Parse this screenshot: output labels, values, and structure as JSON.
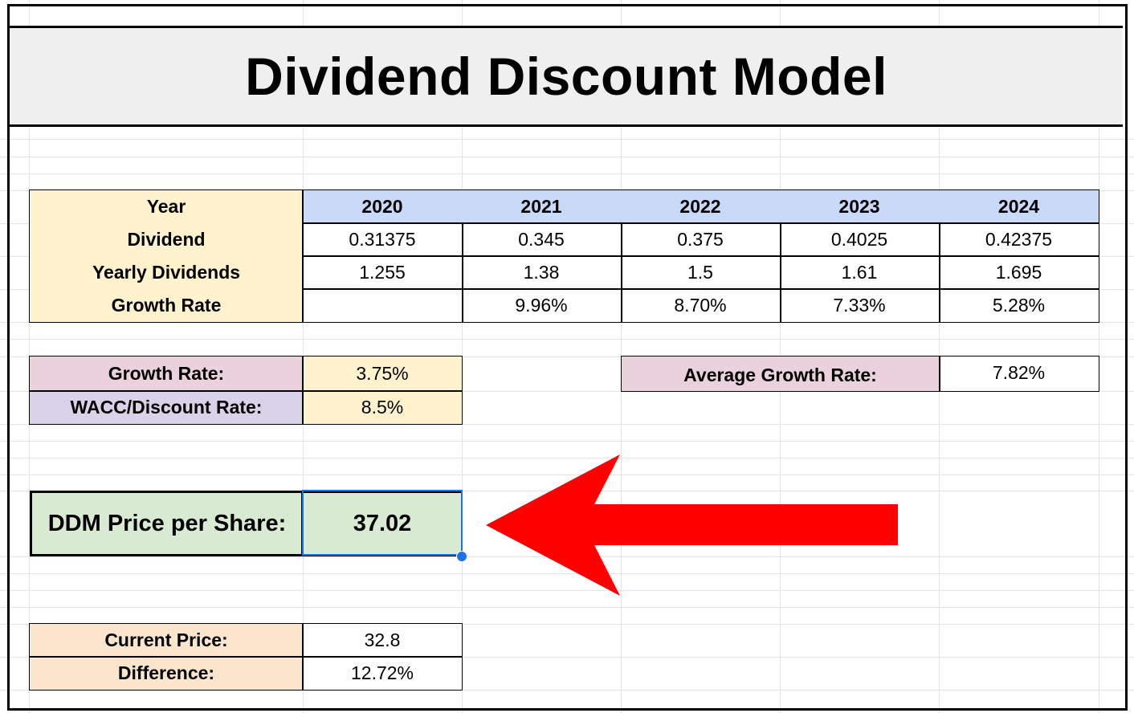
{
  "title": "Dividend Discount Model",
  "colors": {
    "header_yellow": "#fff2cc",
    "year_blue": "#c9daf8",
    "pink": "#ead1dc",
    "lavender": "#d9d2e9",
    "orange": "#fce5cd",
    "green": "#d9ead3",
    "arrow_red": "#ff0000",
    "selection_blue": "#1a73e8"
  },
  "table": {
    "row_labels": [
      "Year",
      "Dividend",
      "Yearly Dividends",
      "Growth Rate"
    ],
    "years": [
      "2020",
      "2021",
      "2022",
      "2023",
      "2024"
    ],
    "dividend": [
      "0.31375",
      "0.345",
      "0.375",
      "0.4025",
      "0.42375"
    ],
    "yearly_dividends": [
      "1.255",
      "1.38",
      "1.5",
      "1.61",
      "1.695"
    ],
    "growth_rate": [
      "",
      "9.96%",
      "8.70%",
      "7.33%",
      "5.28%"
    ]
  },
  "inputs": {
    "growth_rate_label": "Growth Rate:",
    "growth_rate_value": "3.75%",
    "wacc_label": "WACC/Discount Rate:",
    "wacc_value": "8.5%"
  },
  "average": {
    "label": "Average Growth Rate:",
    "value": "7.82%"
  },
  "ddm": {
    "label": "DDM Price per Share:",
    "value": "37.02"
  },
  "comparison": {
    "current_price_label": "Current Price:",
    "current_price_value": "32.8",
    "difference_label": "Difference:",
    "difference_value": "12.72%"
  },
  "annotation": {
    "arrow_icon": "left-arrow-icon"
  }
}
